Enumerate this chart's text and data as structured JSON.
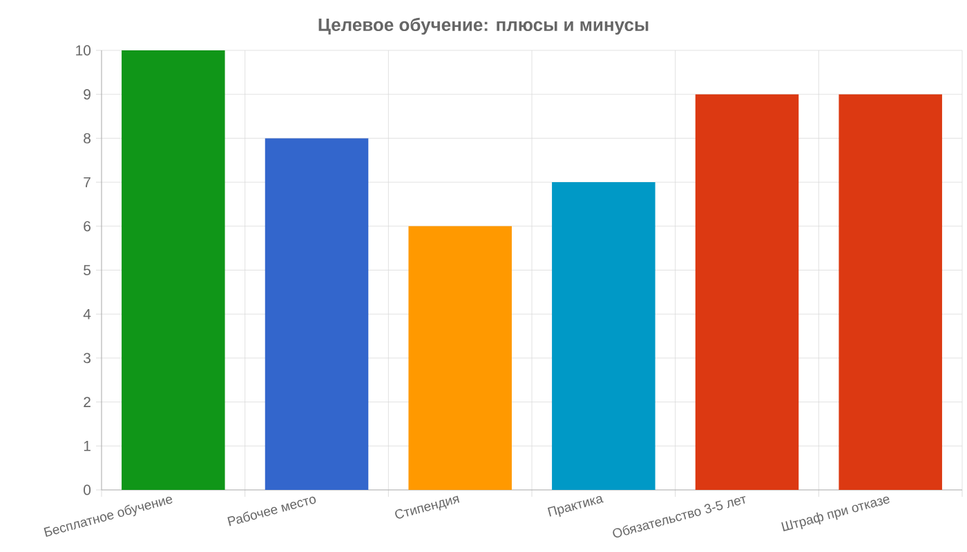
{
  "chart_data": {
    "type": "bar",
    "title": "Целевое обучение: плюсы и минусы",
    "categories": [
      "Бесплатное обучение",
      "Рабочее место",
      "Стипендия",
      "Практика",
      "Обязательство 3-5 лет",
      "Штраф при отказе"
    ],
    "values": [
      10,
      8,
      6,
      7,
      9,
      9
    ],
    "colors": [
      "#109618",
      "#3366cc",
      "#ff9900",
      "#0099c6",
      "#dc3912",
      "#dc3912"
    ],
    "ylim": [
      0,
      10
    ],
    "yticks": [
      0,
      1,
      2,
      3,
      4,
      5,
      6,
      7,
      8,
      9,
      10
    ],
    "grid": true
  }
}
